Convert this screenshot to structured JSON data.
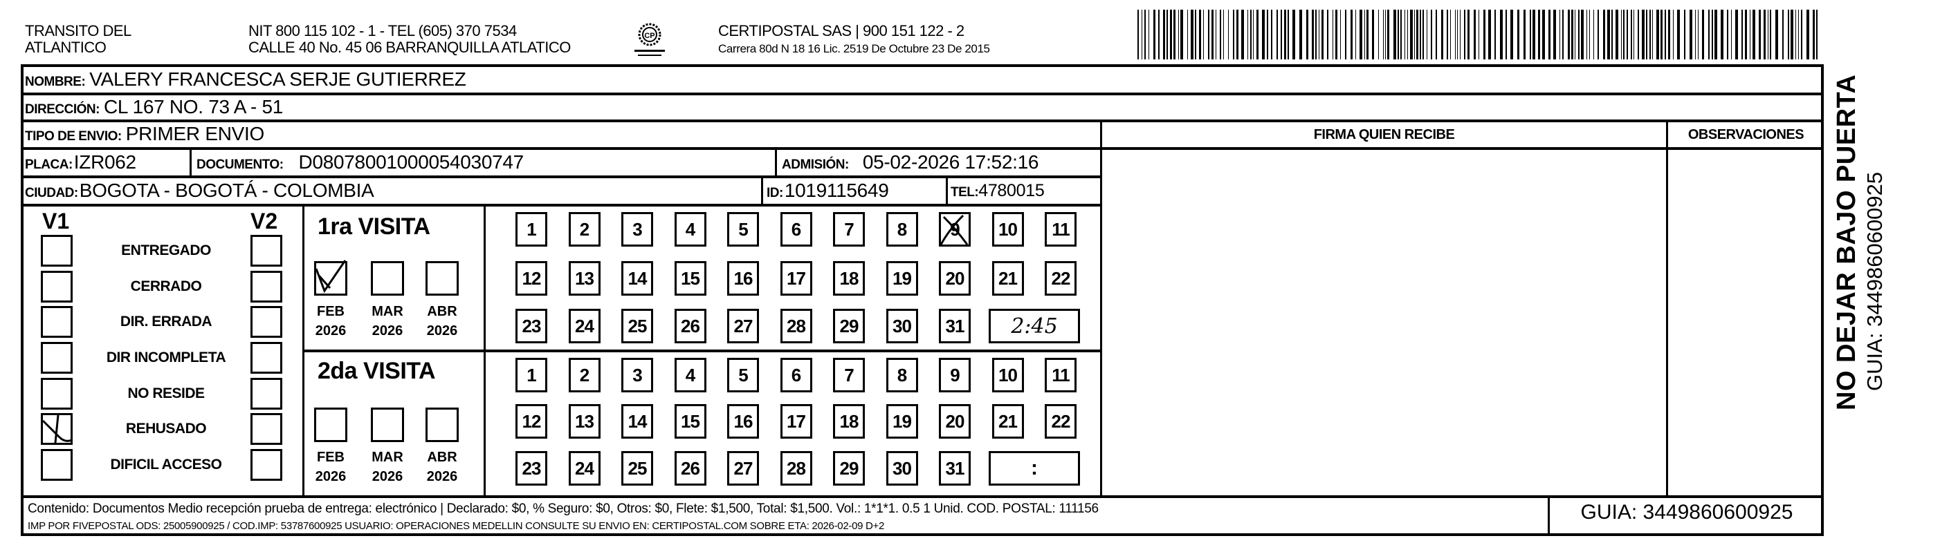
{
  "header": {
    "issuer_line1": "TRANSITO DEL",
    "issuer_line2": "ATLANTICO",
    "issuer_nit": "NIT 800 115 102 - 1 - TEL (605) 370 7534",
    "issuer_address": "CALLE 40 No. 45 06 BARRANQUILLA ATLATICO",
    "logo_text": "CERTIPOSTAL",
    "courier_name": "CERTIPOSTAL SAS | 900 151 122 - 2",
    "courier_license": "Carrera 80d N 18 16  Lic. 2519 De Octubre 23 De 2015"
  },
  "recipient": {
    "nombre_label": "NOMBRE:",
    "nombre": "VALERY FRANCESCA SERJE GUTIERREZ",
    "direccion_label": "DIRECCIÓN:",
    "direccion": "CL 167 NO. 73 A - 51",
    "tipo_label": "TIPO DE ENVIO:",
    "tipo": "PRIMER ENVIO",
    "placa_label": "PLACA:",
    "placa": "IZR062",
    "documento_label": "DOCUMENTO:",
    "documento": "D08078001000054030747",
    "admision_label": "ADMISIÓN:",
    "admision": "05-02-2026 17:52:16",
    "ciudad_label": "CIUDAD:",
    "ciudad": "BOGOTA - BOGOTÁ - COLOMBIA",
    "id_label": "ID:",
    "id": "1019115649",
    "tel_label": "TEL:",
    "tel": "4780015"
  },
  "columns": {
    "firma": "FIRMA QUIEN RECIBE",
    "observaciones": "OBSERVACIONES"
  },
  "status": {
    "v1_label": "V1",
    "v2_label": "V2",
    "items": [
      {
        "label": "ENTREGADO",
        "v1": false,
        "v2": false
      },
      {
        "label": "CERRADO",
        "v1": false,
        "v2": false
      },
      {
        "label": "DIR. ERRADA",
        "v1": false,
        "v2": false
      },
      {
        "label": "DIR INCOMPLETA",
        "v1": false,
        "v2": false
      },
      {
        "label": "NO RESIDE",
        "v1": false,
        "v2": false
      },
      {
        "label": "REHUSADO",
        "v1": true,
        "v2": false
      },
      {
        "label": "DIFICIL ACCESO",
        "v1": false,
        "v2": false
      }
    ]
  },
  "visits": [
    {
      "title": "1ra VISITA",
      "months": [
        {
          "month": "FEB",
          "year": "2026",
          "checked": true
        },
        {
          "month": "MAR",
          "year": "2026",
          "checked": false
        },
        {
          "month": "ABR",
          "year": "2026",
          "checked": false
        }
      ],
      "days": [
        "1",
        "2",
        "3",
        "4",
        "5",
        "6",
        "7",
        "8",
        "9",
        "10",
        "11",
        "12",
        "13",
        "14",
        "15",
        "16",
        "17",
        "18",
        "19",
        "20",
        "21",
        "22",
        "23",
        "24",
        "25",
        "26",
        "27",
        "28",
        "29",
        "30",
        "31"
      ],
      "marked_day": "9",
      "time": "2:45"
    },
    {
      "title": "2da VISITA",
      "months": [
        {
          "month": "FEB",
          "year": "2026",
          "checked": false
        },
        {
          "month": "MAR",
          "year": "2026",
          "checked": false
        },
        {
          "month": "ABR",
          "year": "2026",
          "checked": false
        }
      ],
      "days": [
        "1",
        "2",
        "3",
        "4",
        "5",
        "6",
        "7",
        "8",
        "9",
        "10",
        "11",
        "12",
        "13",
        "14",
        "15",
        "16",
        "17",
        "18",
        "19",
        "20",
        "21",
        "22",
        "23",
        "24",
        "25",
        "26",
        "27",
        "28",
        "29",
        "30",
        "31"
      ],
      "marked_day": null,
      "time": ":"
    }
  ],
  "side": {
    "warning": "NO DEJAR BAJO PUERTA",
    "guia": "GUIA: 3449860600925"
  },
  "footer": {
    "line1": "Contenido: Documentos Medio recepción prueba de entrega: electrónico | Declarado: $0, % Seguro: $0, Otros: $0, Flete: $1,500, Total: $1,500. Vol.: 1*1*1. 0.5  1 Unid. COD. POSTAL: 111156",
    "line2": "IMP POR FIVEPOSTAL ODS: 25005900925 / COD.IMP: 53787600925 USUARIO: OPERACIONES MEDELLIN CONSULTE SU ENVIO EN: CERTIPOSTAL.COM SOBRE ETA: 2026-02-09 D+2",
    "guia": "GUIA: 3449860600925"
  }
}
